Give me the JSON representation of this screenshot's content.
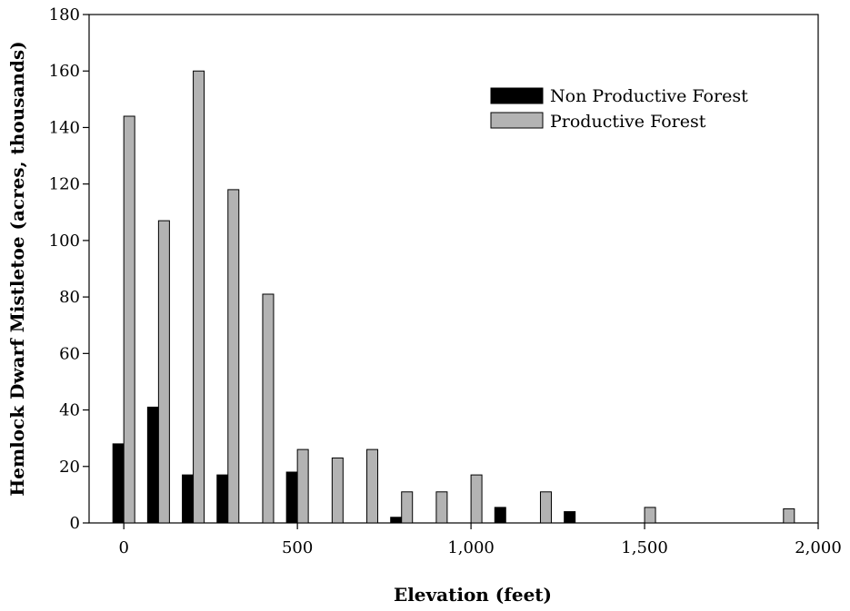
{
  "chart_data": {
    "type": "bar",
    "title": "",
    "xlabel": "Elevation (feet)",
    "ylabel": "Hemlock Dwarf Mistletoe (acres, thousands)",
    "xlim": [
      -100,
      2000
    ],
    "ylim": [
      0,
      180
    ],
    "x_ticks": [
      0,
      500,
      1000,
      1500,
      2000
    ],
    "x_tick_labels": [
      "0",
      "500",
      "1,000",
      "1,500",
      "2,000"
    ],
    "y_ticks": [
      0,
      20,
      40,
      60,
      80,
      100,
      120,
      140,
      160,
      180
    ],
    "y_tick_labels": [
      "0",
      "20",
      "40",
      "60",
      "80",
      "100",
      "120",
      "140",
      "160",
      "180"
    ],
    "x": [
      0,
      100,
      200,
      300,
      400,
      500,
      600,
      700,
      800,
      900,
      1000,
      1100,
      1200,
      1300,
      1500,
      1900
    ],
    "series": [
      {
        "name": "Non Productive Forest",
        "color": "#000000",
        "values": [
          28,
          41,
          17,
          17,
          0,
          18,
          0,
          0,
          2,
          0,
          0,
          5.5,
          0,
          4,
          0,
          0
        ]
      },
      {
        "name": "Productive Forest",
        "color": "#b3b3b3",
        "values": [
          144,
          107,
          160,
          118,
          81,
          26,
          23,
          26,
          11,
          11,
          17,
          0,
          11,
          0,
          5.5,
          5
        ]
      }
    ],
    "legend_position": "top-right",
    "grid": false
  }
}
